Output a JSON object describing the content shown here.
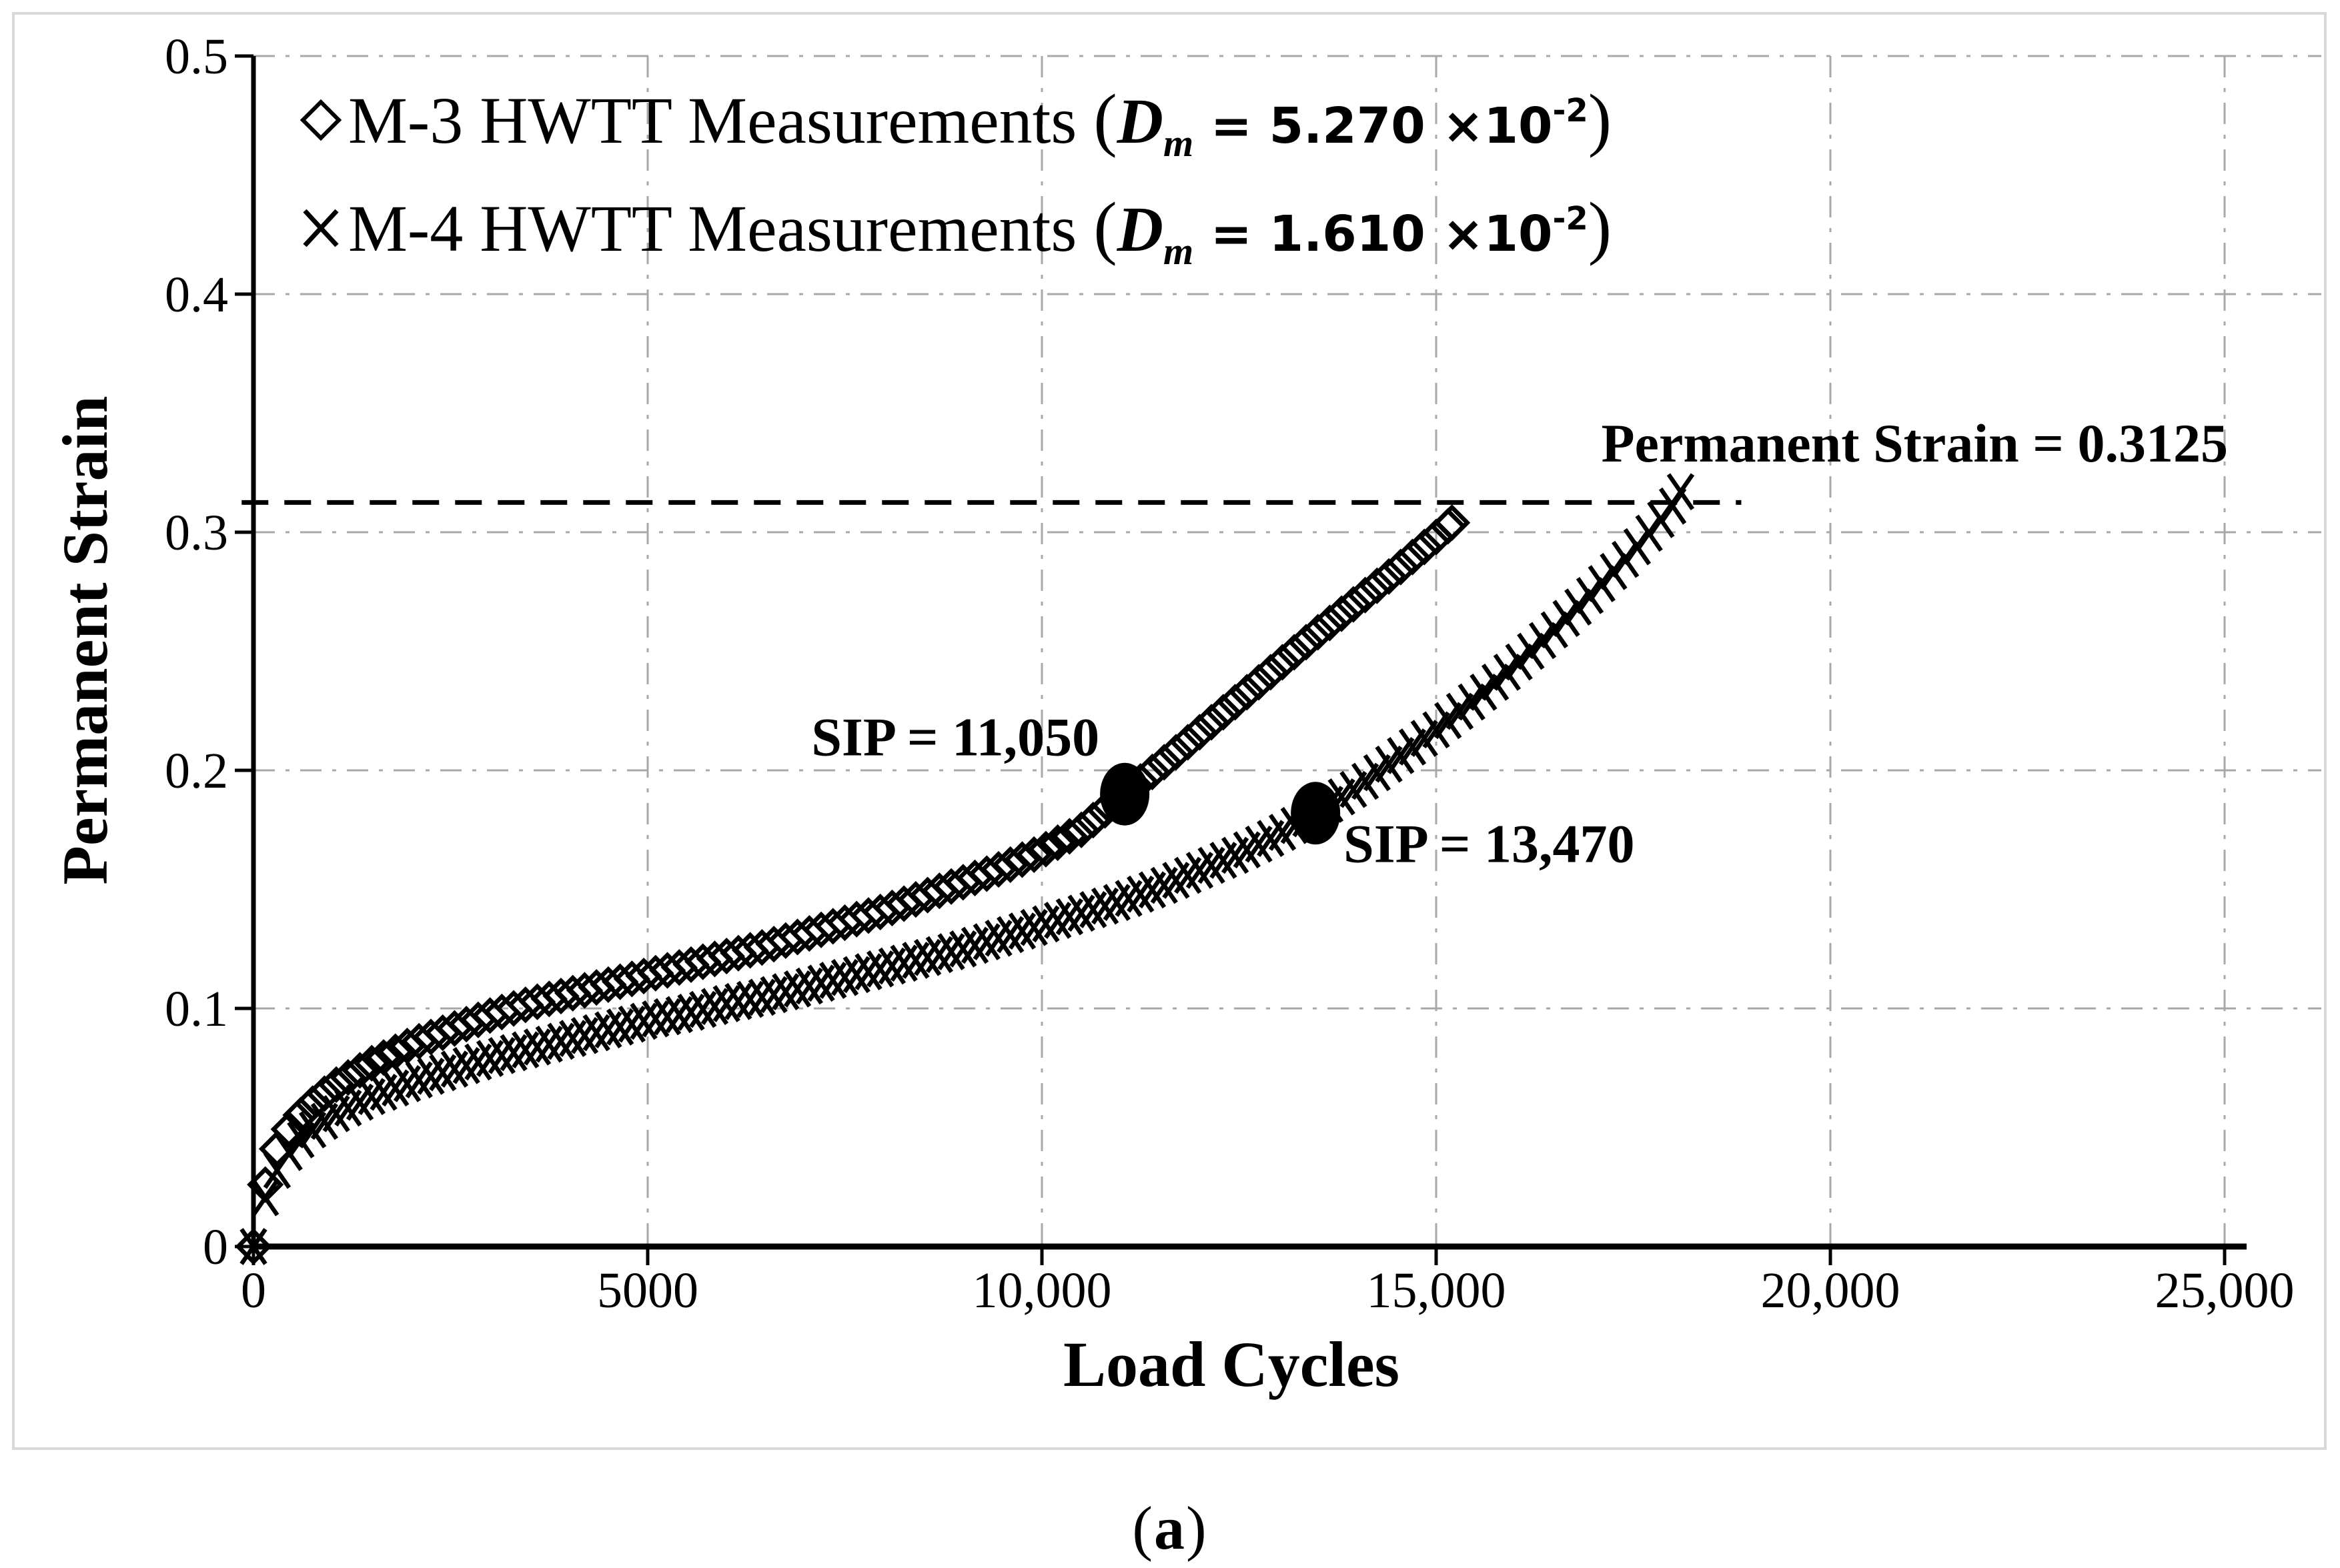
{
  "figure": {
    "caption": {
      "open": "(",
      "letter": "a",
      "close": ")"
    },
    "colors": {
      "ink": "#000000",
      "grid": "#a8a8a8",
      "border": "#d8d8d8",
      "background": "#ffffff"
    }
  },
  "chart_data": {
    "type": "scatter",
    "title": "",
    "xlabel": "Load Cycles",
    "ylabel": "Permanent Strain",
    "xlim": [
      0,
      25000
    ],
    "ylim": [
      0,
      0.5
    ],
    "grid": "dash-dot",
    "legend_position": "top-left",
    "x_ticks": [
      {
        "v": 0,
        "label": "0"
      },
      {
        "v": 5000,
        "label": "5000"
      },
      {
        "v": 10000,
        "label": "10,000"
      },
      {
        "v": 15000,
        "label": "15,000"
      },
      {
        "v": 20000,
        "label": "20,000"
      },
      {
        "v": 25000,
        "label": "25,000"
      }
    ],
    "y_ticks": [
      {
        "v": 0,
        "label": "0"
      },
      {
        "v": 0.1,
        "label": "0.1"
      },
      {
        "v": 0.2,
        "label": "0.2"
      },
      {
        "v": 0.3,
        "label": "0.3"
      },
      {
        "v": 0.4,
        "label": "0.4"
      },
      {
        "v": 0.5,
        "label": "0.5"
      }
    ],
    "marker_step_cycles": 150,
    "series": [
      {
        "name": "M-3",
        "marker": "diamond",
        "label": "M-3 HWTT Measurements ",
        "dm": {
          "open": "(",
          "symbol": "D",
          "sub": "m",
          "eq": " = ",
          "value": "5.270",
          "times": " ×10",
          "exp": "-2",
          "close": ")"
        },
        "points": [
          [
            0,
            0
          ],
          [
            100,
            0.02
          ],
          [
            200,
            0.032
          ],
          [
            300,
            0.041
          ],
          [
            500,
            0.052
          ],
          [
            750,
            0.06
          ],
          [
            1000,
            0.067
          ],
          [
            1500,
            0.077
          ],
          [
            2000,
            0.085
          ],
          [
            2500,
            0.091
          ],
          [
            3000,
            0.097
          ],
          [
            3500,
            0.102
          ],
          [
            4000,
            0.106
          ],
          [
            4500,
            0.11
          ],
          [
            5000,
            0.114
          ],
          [
            5500,
            0.118
          ],
          [
            6000,
            0.122
          ],
          [
            6500,
            0.126
          ],
          [
            7000,
            0.131
          ],
          [
            7500,
            0.136
          ],
          [
            8000,
            0.141
          ],
          [
            8500,
            0.147
          ],
          [
            9000,
            0.153
          ],
          [
            9500,
            0.159
          ],
          [
            10000,
            0.166
          ],
          [
            10500,
            0.175
          ],
          [
            11050,
            0.19
          ],
          [
            11500,
            0.202
          ],
          [
            12000,
            0.216
          ],
          [
            12500,
            0.23
          ],
          [
            13000,
            0.244
          ],
          [
            13500,
            0.258
          ],
          [
            14000,
            0.271
          ],
          [
            14500,
            0.284
          ],
          [
            15000,
            0.298
          ],
          [
            15200,
            0.304
          ]
        ]
      },
      {
        "name": "M-4",
        "marker": "x",
        "label": "M-4 HWTT Measurements ",
        "dm": {
          "open": "(",
          "symbol": "D",
          "sub": "m",
          "eq": " = ",
          "value": "1.610",
          "times": " ×10",
          "exp": "-2",
          "close": ")"
        },
        "points": [
          [
            0,
            0
          ],
          [
            100,
            0.016
          ],
          [
            200,
            0.025
          ],
          [
            300,
            0.032
          ],
          [
            500,
            0.042
          ],
          [
            750,
            0.049
          ],
          [
            1000,
            0.055
          ],
          [
            1500,
            0.063
          ],
          [
            2000,
            0.069
          ],
          [
            2500,
            0.074
          ],
          [
            3000,
            0.079
          ],
          [
            3500,
            0.083
          ],
          [
            4000,
            0.087
          ],
          [
            4500,
            0.091
          ],
          [
            5000,
            0.095
          ],
          [
            5500,
            0.098
          ],
          [
            6000,
            0.102
          ],
          [
            6500,
            0.105
          ],
          [
            7000,
            0.109
          ],
          [
            7500,
            0.113
          ],
          [
            8000,
            0.117
          ],
          [
            8500,
            0.121
          ],
          [
            9000,
            0.125
          ],
          [
            9500,
            0.13
          ],
          [
            10000,
            0.135
          ],
          [
            10500,
            0.14
          ],
          [
            11000,
            0.145
          ],
          [
            11500,
            0.151
          ],
          [
            12000,
            0.158
          ],
          [
            12500,
            0.165
          ],
          [
            13000,
            0.173
          ],
          [
            13470,
            0.182
          ],
          [
            14000,
            0.193
          ],
          [
            14500,
            0.205
          ],
          [
            15000,
            0.217
          ],
          [
            15500,
            0.23
          ],
          [
            16000,
            0.244
          ],
          [
            16500,
            0.259
          ],
          [
            17000,
            0.275
          ],
          [
            17500,
            0.292
          ],
          [
            18000,
            0.311
          ],
          [
            18100,
            0.317
          ]
        ]
      }
    ],
    "annotations": {
      "sip1": {
        "text": "SIP = 11,050",
        "cycles": 11050,
        "strain": 0.19
      },
      "sip2": {
        "text": "SIP = 13,470",
        "cycles": 13470,
        "strain": 0.182
      },
      "threshold": {
        "text": "Permanent Strain = 0.3125",
        "strain": 0.3125,
        "from_cycles": -150,
        "to_cycles": 18870
      }
    }
  }
}
